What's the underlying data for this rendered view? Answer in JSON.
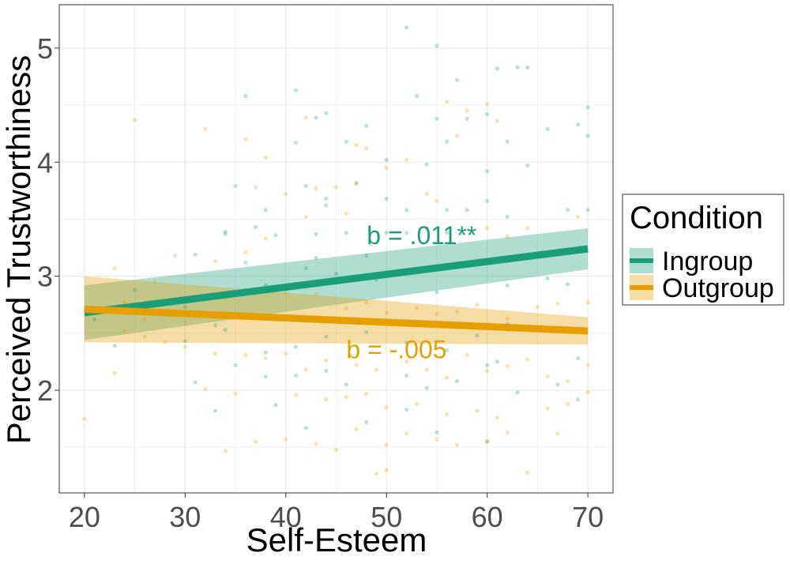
{
  "chart_data": {
    "type": "scatter",
    "xlabel": "Self-Esteem",
    "ylabel": "Perceived Trustworthiness",
    "xlim": [
      17.5,
      72.5
    ],
    "ylim": [
      1.1,
      5.38
    ],
    "x_ticks": [
      20,
      30,
      40,
      50,
      60,
      70
    ],
    "y_ticks": [
      2,
      3,
      4,
      5
    ],
    "grid": true,
    "legend": {
      "title": "Condition",
      "placement": "right",
      "items": [
        "Ingroup",
        "Outgroup"
      ]
    },
    "series": [
      {
        "name": "Ingroup",
        "color": "#1a9e77",
        "fit": {
          "x": [
            20,
            70
          ],
          "y": [
            2.68,
            3.24
          ]
        },
        "ci": {
          "lower": [
            2.44,
            3.06
          ],
          "upper": [
            2.92,
            3.42
          ]
        },
        "annotation": "b = .011**",
        "annotation_pos": [
          53.5,
          3.28
        ],
        "points": [
          [
            52,
            5.18
          ],
          [
            55,
            5.02
          ],
          [
            61,
            4.82
          ],
          [
            63,
            4.83
          ],
          [
            64,
            4.83
          ],
          [
            57,
            4.72
          ],
          [
            41,
            4.63
          ],
          [
            36,
            4.58
          ],
          [
            53,
            4.58
          ],
          [
            60,
            4.42
          ],
          [
            55,
            4.38
          ],
          [
            48,
            4.32
          ],
          [
            58,
            4.38
          ],
          [
            66,
            4.29
          ],
          [
            69,
            4.33
          ],
          [
            70,
            4.48
          ],
          [
            70,
            4.23
          ],
          [
            44,
            4.43
          ],
          [
            43,
            4.39
          ],
          [
            41,
            4.17
          ],
          [
            46,
            4.18
          ],
          [
            56,
            4.18
          ],
          [
            62,
            4.18
          ],
          [
            50,
            4.02
          ],
          [
            54,
            3.98
          ],
          [
            60,
            3.92
          ],
          [
            64,
            3.97
          ],
          [
            47,
            3.81
          ],
          [
            42,
            3.79
          ],
          [
            35,
            3.79
          ],
          [
            38,
            3.58
          ],
          [
            44,
            3.68
          ],
          [
            44,
            3.62
          ],
          [
            50,
            3.68
          ],
          [
            52,
            3.58
          ],
          [
            56,
            3.58
          ],
          [
            58,
            3.58
          ],
          [
            60,
            3.66
          ],
          [
            62,
            3.52
          ],
          [
            68,
            3.58
          ],
          [
            70,
            3.58
          ],
          [
            34,
            3.39
          ],
          [
            34,
            3.37
          ],
          [
            37,
            3.43
          ],
          [
            39,
            3.36
          ],
          [
            43,
            3.37
          ],
          [
            46,
            3.38
          ],
          [
            50,
            3.38
          ],
          [
            52,
            3.38
          ],
          [
            54,
            3.42
          ],
          [
            56,
            3.38
          ],
          [
            48,
            3.18
          ],
          [
            43,
            3.16
          ],
          [
            36,
            3.12
          ],
          [
            31,
            3.19
          ],
          [
            25,
            2.88
          ],
          [
            27,
            2.76
          ],
          [
            30,
            2.73
          ],
          [
            38,
            2.92
          ],
          [
            42,
            3.07
          ],
          [
            45,
            3.02
          ],
          [
            47,
            2.97
          ],
          [
            49,
            2.97
          ],
          [
            55,
            2.86
          ],
          [
            57,
            3.08
          ],
          [
            62,
            2.92
          ],
          [
            66,
            2.98
          ],
          [
            68,
            2.93
          ],
          [
            63,
            2.55
          ],
          [
            62,
            2.58
          ],
          [
            59,
            2.48
          ],
          [
            56,
            2.35
          ],
          [
            52,
            2.42
          ],
          [
            48,
            2.51
          ],
          [
            44,
            2.47
          ],
          [
            41,
            2.38
          ],
          [
            38,
            2.33
          ],
          [
            34,
            2.53
          ],
          [
            33,
            2.57
          ],
          [
            30,
            2.43
          ],
          [
            23,
            2.39
          ],
          [
            21,
            2.62
          ],
          [
            35,
            2.22
          ],
          [
            38,
            2.12
          ],
          [
            41,
            2.13
          ],
          [
            44,
            2.17
          ],
          [
            46,
            2.05
          ],
          [
            52,
            2.13
          ],
          [
            54,
            2.02
          ],
          [
            57,
            2.08
          ],
          [
            60,
            2.22
          ],
          [
            61,
            2.25
          ],
          [
            69,
            2.28
          ],
          [
            67,
            2.05
          ],
          [
            63,
            1.98
          ],
          [
            69,
            1.92
          ],
          [
            39,
            1.87
          ],
          [
            33,
            1.82
          ],
          [
            42,
            1.67
          ],
          [
            48,
            1.72
          ],
          [
            55,
            1.63
          ],
          [
            60,
            1.55
          ],
          [
            52,
            1.83
          ],
          [
            31,
            2.07
          ]
        ]
      },
      {
        "name": "Outgroup",
        "color": "#e69f00",
        "fit": {
          "x": [
            20,
            70
          ],
          "y": [
            2.71,
            2.52
          ]
        },
        "ci": {
          "lower": [
            2.42,
            2.4
          ],
          "upper": [
            3.0,
            2.64
          ]
        },
        "annotation": "b = -.005",
        "annotation_pos": [
          51,
          2.28
        ],
        "points": [
          [
            25,
            4.37
          ],
          [
            32,
            4.29
          ],
          [
            36,
            4.2
          ],
          [
            42,
            4.39
          ],
          [
            47,
            4.15
          ],
          [
            48,
            4.12
          ],
          [
            58,
            4.45
          ],
          [
            56,
            4.53
          ],
          [
            60,
            4.51
          ],
          [
            61,
            4.36
          ],
          [
            57,
            4.23
          ],
          [
            52,
            4.02
          ],
          [
            50,
            3.95
          ],
          [
            38,
            4.04
          ],
          [
            43,
            3.77
          ],
          [
            40,
            3.72
          ],
          [
            37,
            3.78
          ],
          [
            45,
            3.78
          ],
          [
            47,
            3.82
          ],
          [
            54,
            3.72
          ],
          [
            55,
            3.66
          ],
          [
            60,
            3.42
          ],
          [
            62,
            3.35
          ],
          [
            64,
            3.42
          ],
          [
            67,
            3.22
          ],
          [
            69,
            3.52
          ],
          [
            42,
            3.52
          ],
          [
            46,
            3.55
          ],
          [
            38,
            3.33
          ],
          [
            36,
            3.21
          ],
          [
            33,
            3.13
          ],
          [
            29,
            3.18
          ],
          [
            27,
            2.95
          ],
          [
            23,
            3.07
          ],
          [
            24,
            2.77
          ],
          [
            26,
            2.62
          ],
          [
            28,
            2.79
          ],
          [
            30,
            2.6
          ],
          [
            34,
            2.8
          ],
          [
            37,
            2.88
          ],
          [
            40,
            2.86
          ],
          [
            43,
            2.84
          ],
          [
            46,
            2.72
          ],
          [
            48,
            2.77
          ],
          [
            50,
            2.68
          ],
          [
            53,
            2.72
          ],
          [
            55,
            2.67
          ],
          [
            57,
            2.69
          ],
          [
            59,
            2.75
          ],
          [
            62,
            2.63
          ],
          [
            65,
            2.73
          ],
          [
            67,
            2.76
          ],
          [
            70,
            2.77
          ],
          [
            24,
            2.52
          ],
          [
            26,
            2.47
          ],
          [
            28,
            2.42
          ],
          [
            30,
            2.38
          ],
          [
            33,
            2.32
          ],
          [
            36,
            2.31
          ],
          [
            38,
            2.28
          ],
          [
            40,
            2.32
          ],
          [
            42,
            2.18
          ],
          [
            44,
            2.26
          ],
          [
            47,
            2.22
          ],
          [
            49,
            2.18
          ],
          [
            52,
            2.25
          ],
          [
            54,
            2.18
          ],
          [
            56,
            2.11
          ],
          [
            58,
            2.31
          ],
          [
            60,
            2.17
          ],
          [
            62,
            2.21
          ],
          [
            64,
            2.27
          ],
          [
            66,
            2.12
          ],
          [
            68,
            2.08
          ],
          [
            70,
            2.22
          ],
          [
            23,
            2.15
          ],
          [
            32,
            2.01
          ],
          [
            35,
            1.97
          ],
          [
            41,
            1.96
          ],
          [
            44,
            1.92
          ],
          [
            46,
            1.94
          ],
          [
            48,
            1.97
          ],
          [
            50,
            1.85
          ],
          [
            53,
            1.88
          ],
          [
            56,
            1.79
          ],
          [
            59,
            1.82
          ],
          [
            61,
            1.76
          ],
          [
            66,
            1.84
          ],
          [
            68,
            1.88
          ],
          [
            70,
            1.98
          ],
          [
            20,
            1.75
          ],
          [
            37,
            1.55
          ],
          [
            40,
            1.57
          ],
          [
            43,
            1.53
          ],
          [
            45,
            1.48
          ],
          [
            47,
            1.66
          ],
          [
            50,
            1.52
          ],
          [
            52,
            1.62
          ],
          [
            55,
            1.57
          ],
          [
            57,
            1.52
          ],
          [
            60,
            1.55
          ],
          [
            62,
            1.63
          ],
          [
            67,
            1.62
          ],
          [
            64,
            1.28
          ],
          [
            49,
            1.27
          ],
          [
            50,
            1.3
          ],
          [
            34,
            1.47
          ]
        ]
      }
    ]
  }
}
